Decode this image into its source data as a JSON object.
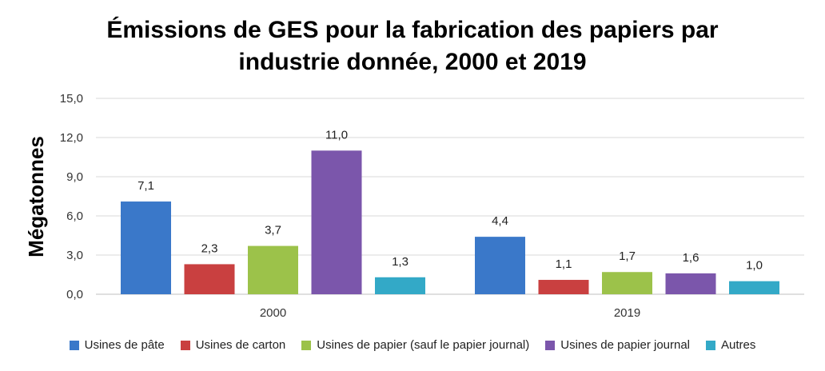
{
  "chart_data": {
    "type": "bar",
    "title": [
      "Émissions de GES pour la fabrication des papiers par",
      "industrie donnée, 2000 et 2019"
    ],
    "xlabel": "",
    "ylabel": "Mégatonnes",
    "ylim": [
      0,
      15
    ],
    "yticks": [
      "0,0",
      "3,0",
      "6,0",
      "9,0",
      "12,0",
      "15,0"
    ],
    "ytick_values": [
      0,
      3,
      6,
      9,
      12,
      15
    ],
    "grid": true,
    "legend_position": "bottom",
    "categories": [
      "2000",
      "2019"
    ],
    "series": [
      {
        "name": "Usines de pâte",
        "color": "#3A78C9",
        "values": [
          7.1,
          4.4
        ],
        "labels": [
          "7,1",
          "4,4"
        ]
      },
      {
        "name": "Usines de carton",
        "color": "#C94040",
        "values": [
          2.3,
          1.1
        ],
        "labels": [
          "2,3",
          "1,1"
        ]
      },
      {
        "name": "Usines de papier (sauf le papier journal)",
        "color": "#9CC24A",
        "values": [
          3.7,
          1.7
        ],
        "labels": [
          "3,7",
          "1,7"
        ]
      },
      {
        "name": "Usines de papier journal",
        "color": "#7B56AB",
        "values": [
          11.0,
          1.6
        ],
        "labels": [
          "11,0",
          "1,6"
        ]
      },
      {
        "name": "Autres",
        "color": "#33A9C7",
        "values": [
          1.3,
          1.0
        ],
        "labels": [
          "1,3",
          "1,0"
        ]
      }
    ]
  }
}
